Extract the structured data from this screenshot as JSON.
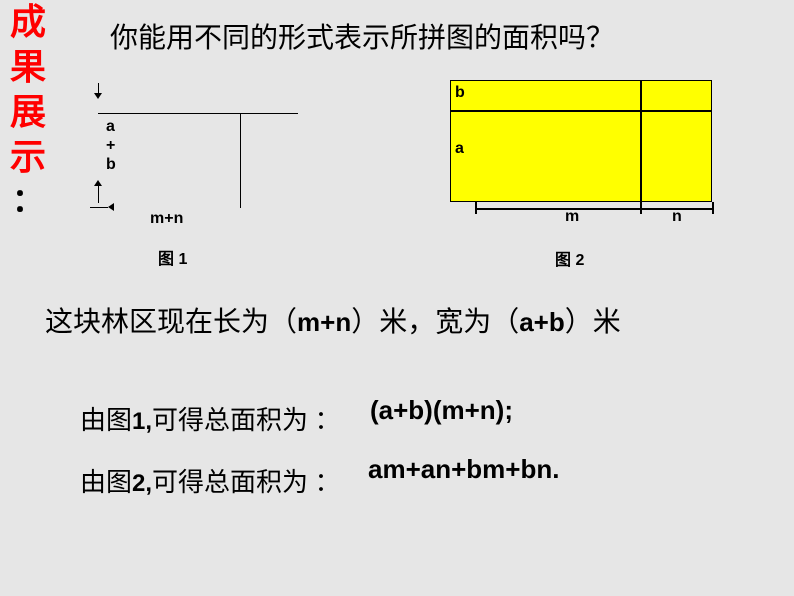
{
  "title": {
    "c1": "成",
    "c2": "果",
    "c3": "展",
    "c4": "示",
    "colon": "："
  },
  "question": "你能用不同的形式表示所拼图的面积吗？",
  "fig1": {
    "ab_label": "a\n+\nb",
    "mn_label": "m+n",
    "caption": "图 1"
  },
  "fig2": {
    "b_label": "b",
    "a_label": "a",
    "m_label": "m",
    "n_label": "n",
    "caption": "图 2",
    "fill_color": "#ffff00",
    "border_color": "#000000"
  },
  "desc": {
    "prefix": "这块林区现在长为（",
    "mn": "m+n",
    "mid": "）米，宽为（",
    "ab": "a+b",
    "suffix": "）米"
  },
  "line1": {
    "prefix": "由图",
    "num": "1,",
    "mid": "可得总面积为 ：",
    "formula": "(a+b)(m+n);"
  },
  "line2": {
    "prefix": "由图",
    "num": "2,",
    "mid": "可得总面积为 ：",
    "formula": "am+an+bm+bn."
  },
  "colors": {
    "background": "#e6e6e6",
    "title_color": "#ff0000",
    "text_color": "#000000"
  }
}
